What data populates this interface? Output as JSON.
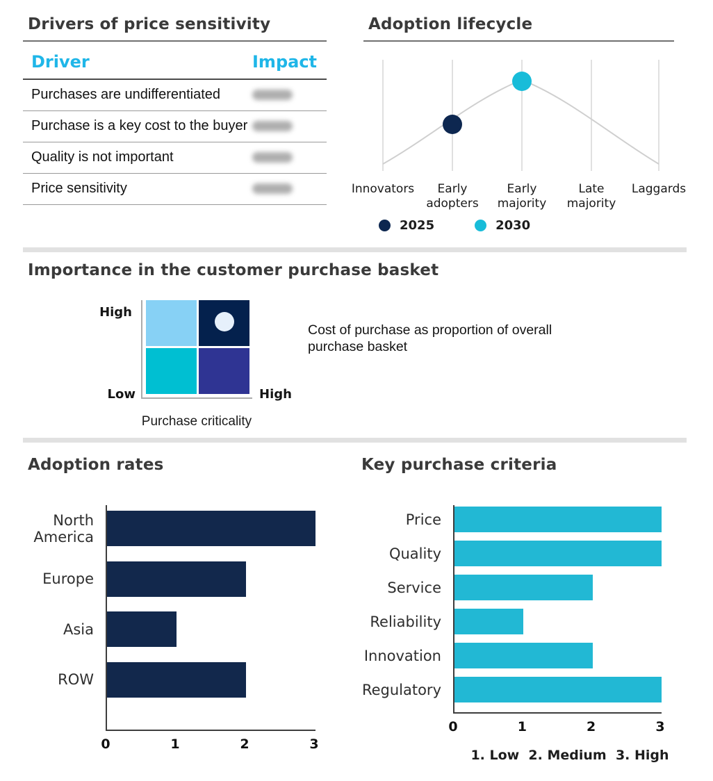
{
  "colors": {
    "navy": "#12284C",
    "cyan": "#22B8D4",
    "header_cyan": "#1FB6E8",
    "divider_gray": "#E1E1E1",
    "curve_gray": "#CFCFCF"
  },
  "drivers_table": {
    "title": "Drivers of price sensitivity",
    "columns": [
      "Driver",
      "Impact"
    ],
    "rows": [
      "Purchases are undifferentiated",
      "Purchase is a key cost to the buyer",
      "Quality is not important",
      "Price sensitivity"
    ],
    "impact_values_redacted": true
  },
  "basket": {
    "title": "Importance in the customer purchase basket",
    "y_high": "High",
    "y_low": "Low",
    "x_high": "High",
    "x_label": "Purchase criticality",
    "caption": "Cost of purchase as proportion of overall purchase basket"
  },
  "chart_data": [
    {
      "type": "line",
      "title": "Adoption lifecycle",
      "curve": "bell",
      "grid": "vertical",
      "categories": [
        "Innovators",
        "Early adopters",
        "Early majority",
        "Late majority",
        "Laggards"
      ],
      "series": [
        {
          "name": "2025",
          "category": "Early adopters",
          "stage_index": 1,
          "color": "#0D2750"
        },
        {
          "name": "2030",
          "category": "Early majority",
          "stage_index": 2,
          "color": "#18BCD9"
        }
      ],
      "legend_position": "bottom"
    },
    {
      "type": "bar",
      "title": "Adoption rates",
      "orientation": "horizontal",
      "categories": [
        "North America",
        "Europe",
        "Asia",
        "ROW"
      ],
      "values": [
        3,
        2,
        1,
        2
      ],
      "xlim": [
        0,
        3
      ],
      "ticks": [
        "0",
        "1",
        "2",
        "3"
      ],
      "bar_color": "#12284C"
    },
    {
      "type": "bar",
      "title": "Key purchase criteria",
      "orientation": "horizontal",
      "categories": [
        "Price",
        "Quality",
        "Service",
        "Reliability",
        "Innovation",
        "Regulatory"
      ],
      "values": [
        3,
        3,
        2,
        1,
        2,
        3
      ],
      "xlim": [
        0,
        3
      ],
      "ticks": [
        "0",
        "1",
        "2",
        "3"
      ],
      "bar_color": "#22B8D4",
      "footnote": "1. Low  2. Medium  3. High"
    },
    {
      "type": "heatmap",
      "title": "Importance in the customer purchase basket",
      "x_axis": {
        "label": "Purchase criticality",
        "low": "Low",
        "high": "High"
      },
      "y_axis": {
        "low": "Low",
        "high": "High"
      },
      "quadrants": [
        {
          "pos": "top-left",
          "color": "#87D1F5"
        },
        {
          "pos": "top-right",
          "color": "#04214D"
        },
        {
          "pos": "bottom-left",
          "color": "#00BFD2"
        },
        {
          "pos": "bottom-right",
          "color": "#2F3493"
        }
      ],
      "marker": {
        "quadrant": "top-right",
        "color": "#E6F0FB"
      }
    }
  ]
}
